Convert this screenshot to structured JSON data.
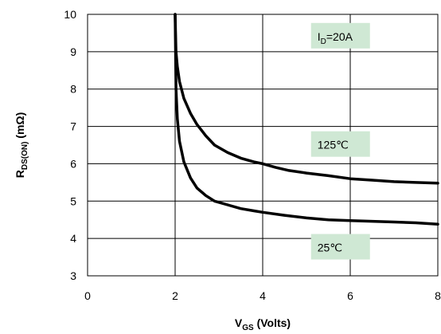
{
  "chart_data": {
    "type": "line",
    "xlabel": {
      "main": "V",
      "sub": "GS",
      "rest": " (Volts)"
    },
    "ylabel": {
      "main": "R",
      "sub": "DS(ON)",
      "rest": " (mΩ)"
    },
    "xlim": [
      0,
      8
    ],
    "ylim": [
      3,
      10
    ],
    "x_ticks": [
      "0",
      "2",
      "4",
      "6",
      "8"
    ],
    "y_ticks": [
      "3",
      "4",
      "5",
      "6",
      "7",
      "8",
      "9",
      "10"
    ],
    "grid": true,
    "annotations": [
      {
        "main": "I",
        "sub": "D",
        "rest": "=20A",
        "x": 5.25,
        "y": 9.3
      },
      {
        "main": "125℃",
        "sub": "",
        "rest": "",
        "x": 5.25,
        "y": 6.4
      },
      {
        "main": "25℃",
        "sub": "",
        "rest": "",
        "x": 5.25,
        "y": 3.65
      }
    ],
    "series": [
      {
        "color": "#000000",
        "x": [
          2.0,
          2.02,
          2.05,
          2.1,
          2.2,
          2.35,
          2.5,
          2.7,
          2.9,
          3.2,
          3.5,
          3.8,
          4.0,
          4.3,
          4.6,
          5.0,
          5.5,
          6.0,
          6.5,
          7.0,
          7.5,
          8.0
        ],
        "y": [
          10.0,
          9.0,
          8.6,
          8.2,
          7.75,
          7.35,
          7.05,
          6.75,
          6.5,
          6.3,
          6.15,
          6.05,
          6.0,
          5.9,
          5.82,
          5.75,
          5.68,
          5.6,
          5.56,
          5.52,
          5.5,
          5.48
        ]
      },
      {
        "color": "#000000",
        "x": [
          2.0,
          2.02,
          2.05,
          2.1,
          2.2,
          2.35,
          2.5,
          2.7,
          2.9,
          3.2,
          3.5,
          3.8,
          4.0,
          4.5,
          5.0,
          5.5,
          6.0,
          6.5,
          7.0,
          7.5,
          8.0
        ],
        "y": [
          10.0,
          8.0,
          7.2,
          6.6,
          6.05,
          5.62,
          5.35,
          5.15,
          5.0,
          4.9,
          4.8,
          4.74,
          4.7,
          4.62,
          4.55,
          4.5,
          4.48,
          4.46,
          4.44,
          4.42,
          4.38
        ]
      }
    ],
    "annotation_box_color": "#cfe8d4"
  }
}
